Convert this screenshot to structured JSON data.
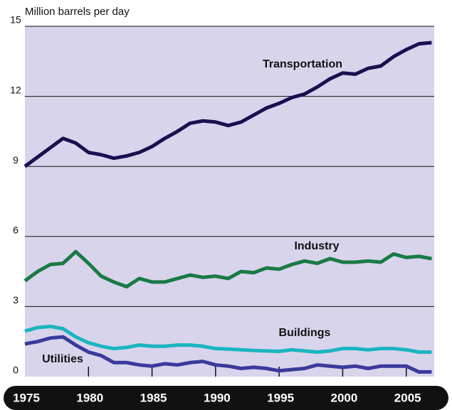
{
  "chart_data": {
    "type": "line",
    "y_label": "Million barrels per day",
    "x": [
      1975,
      1976,
      1977,
      1978,
      1979,
      1980,
      1981,
      1982,
      1983,
      1984,
      1985,
      1986,
      1987,
      1988,
      1989,
      1990,
      1991,
      1992,
      1993,
      1994,
      1995,
      1996,
      1997,
      1998,
      1999,
      2000,
      2001,
      2002,
      2003,
      2004,
      2005,
      2006,
      2007
    ],
    "series": [
      {
        "name": "Transportation",
        "color": "#1a1050",
        "values": [
          9.0,
          9.4,
          9.8,
          10.2,
          10.0,
          9.6,
          9.5,
          9.35,
          9.45,
          9.6,
          9.85,
          10.2,
          10.5,
          10.85,
          10.95,
          10.9,
          10.75,
          10.9,
          11.2,
          11.5,
          11.7,
          11.95,
          12.1,
          12.4,
          12.75,
          13.0,
          12.95,
          13.2,
          13.3,
          13.7,
          14.0,
          14.25,
          14.3
        ]
      },
      {
        "name": "Industry",
        "color": "#1a7a45",
        "values": [
          4.1,
          4.5,
          4.8,
          4.85,
          5.35,
          4.85,
          4.3,
          4.05,
          3.85,
          4.2,
          4.05,
          4.05,
          4.2,
          4.35,
          4.25,
          4.3,
          4.2,
          4.5,
          4.45,
          4.65,
          4.6,
          4.8,
          4.95,
          4.85,
          5.05,
          4.9,
          4.9,
          4.95,
          4.9,
          5.25,
          5.1,
          5.15,
          5.05
        ]
      },
      {
        "name": "Buildings",
        "color": "#1ab5bf",
        "values": [
          1.95,
          2.1,
          2.15,
          2.05,
          1.7,
          1.45,
          1.3,
          1.2,
          1.25,
          1.35,
          1.3,
          1.3,
          1.35,
          1.35,
          1.3,
          1.2,
          1.18,
          1.15,
          1.12,
          1.1,
          1.08,
          1.15,
          1.1,
          1.05,
          1.1,
          1.2,
          1.2,
          1.15,
          1.2,
          1.2,
          1.15,
          1.05,
          1.05
        ]
      },
      {
        "name": "Utilities",
        "color": "#3a3a9a",
        "values": [
          1.4,
          1.5,
          1.65,
          1.7,
          1.35,
          1.05,
          0.9,
          0.6,
          0.6,
          0.5,
          0.45,
          0.55,
          0.5,
          0.6,
          0.65,
          0.5,
          0.45,
          0.35,
          0.4,
          0.35,
          0.25,
          0.3,
          0.35,
          0.5,
          0.45,
          0.4,
          0.45,
          0.35,
          0.45,
          0.45,
          0.45,
          0.2,
          0.2
        ]
      }
    ],
    "xlim": [
      1975,
      2007.2
    ],
    "xticks": [
      1975,
      1980,
      1985,
      1990,
      1995,
      2000,
      2005
    ],
    "ylim": [
      0,
      15
    ],
    "yticks": [
      0,
      3,
      6,
      9,
      12,
      15
    ],
    "grid": true,
    "background": "#d8d4ec"
  }
}
